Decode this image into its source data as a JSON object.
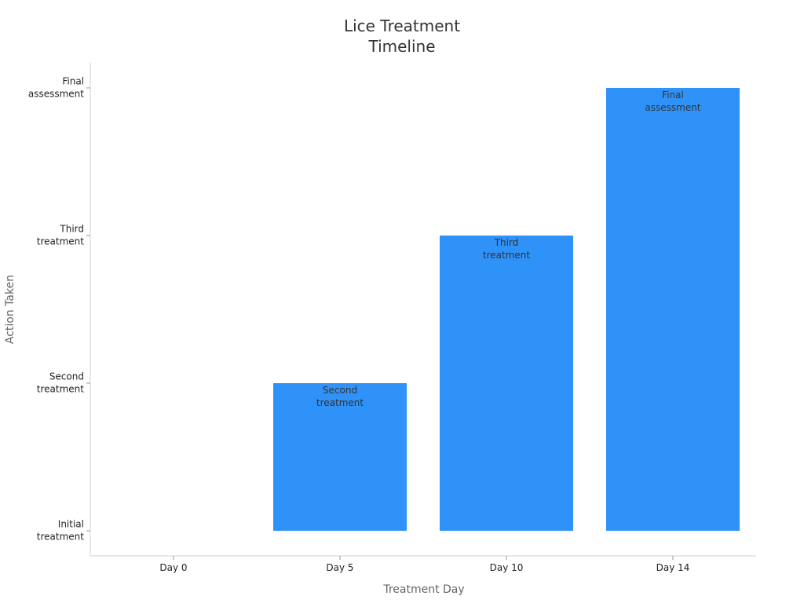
{
  "chart_data": {
    "type": "bar",
    "title": "Lice Treatment\nTimeline",
    "x_label": "Treatment Day",
    "y_label": "Action Taken",
    "categories": [
      "Day 0",
      "Day 5",
      "Day 10",
      "Day 14"
    ],
    "values": [
      0,
      1,
      2,
      3
    ],
    "value_labels": [
      null,
      "Second\ntreatment",
      "Third\ntreatment",
      "Final\nassessment"
    ],
    "color": "#2f92f8",
    "ylim": [
      -0.17,
      3.17
    ],
    "yticks": [
      {
        "value": 0,
        "label": "Initial\ntreatment"
      },
      {
        "value": 1,
        "label": "Second\ntreatment"
      },
      {
        "value": 2,
        "label": "Third\ntreatment"
      },
      {
        "value": 3,
        "label": "Final\nassessment"
      }
    ],
    "grid": false
  }
}
